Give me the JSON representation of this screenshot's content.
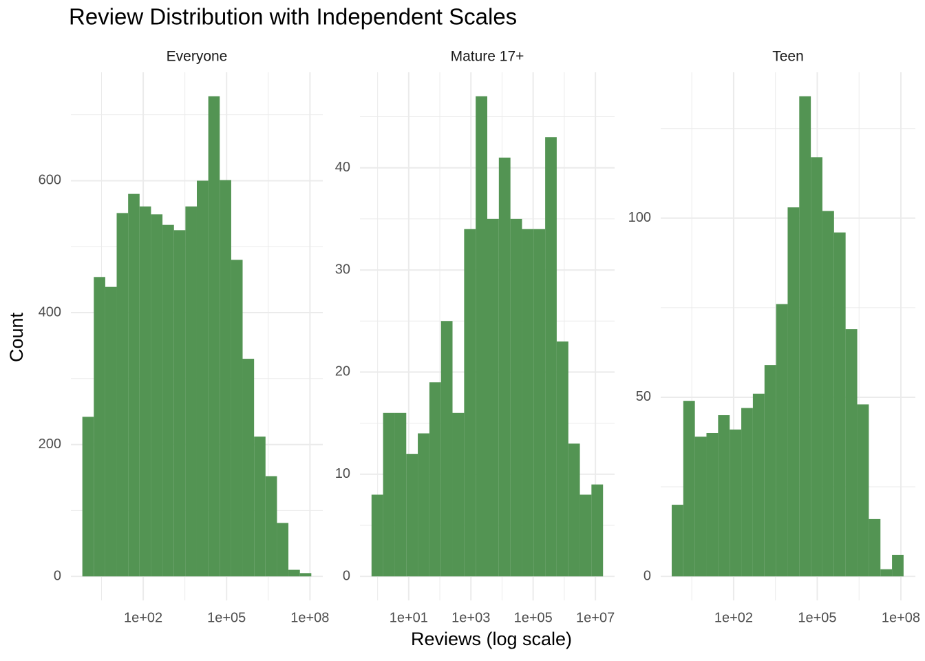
{
  "title": "Review Distribution with Independent Scales",
  "x_label": "Reviews (log scale)",
  "y_label": "Count",
  "chart_data": [
    {
      "type": "histogram",
      "title": "Everyone",
      "color": "#4d914d",
      "log_x": true,
      "grid": true,
      "bins": [
        0.646,
        1.67,
        4.31,
        11.1,
        28.7,
        74.1,
        191,
        494,
        1280,
        3300,
        8510,
        22000,
        56800,
        147000,
        378000,
        977000,
        2520000,
        6520000,
        16800000,
        43500000,
        112000000
      ],
      "values": [
        242,
        454,
        439,
        551,
        580,
        561,
        549,
        533,
        525,
        561,
        600,
        728,
        601,
        480,
        330,
        212,
        152,
        81,
        10,
        5
      ],
      "xlim": [
        0.25,
        290000000
      ],
      "xticks": [
        {
          "value": 100,
          "label": "1e+02"
        },
        {
          "value": 100000,
          "label": "1e+05"
        },
        {
          "value": 100000000,
          "label": "1e+08"
        }
      ],
      "ylim": [
        -36.4,
        764.4
      ],
      "yticks": [
        0,
        200,
        400,
        600
      ]
    },
    {
      "type": "histogram",
      "title": "Mature 17+",
      "color": "#4d914d",
      "log_x": true,
      "grid": true,
      "bins": [
        0.638,
        1.5,
        3.54,
        8.34,
        19.6,
        46.2,
        109,
        256,
        604,
        1420,
        3350,
        7890,
        18600,
        43800,
        103000,
        243000,
        571000,
        1350000,
        3170000,
        7460000,
        17600000
      ],
      "values": [
        8,
        16,
        16,
        12,
        14,
        19,
        25,
        16,
        34,
        47,
        35,
        41,
        35,
        34,
        34,
        43,
        23,
        13,
        8,
        9
      ],
      "xlim": [
        0.271,
        41400000
      ],
      "xticks": [
        {
          "value": 10,
          "label": "1e+01"
        },
        {
          "value": 1000,
          "label": "1e+03"
        },
        {
          "value": 100000,
          "label": "1e+05"
        },
        {
          "value": 10000000,
          "label": "1e+07"
        }
      ],
      "ylim": [
        -2.35,
        49.35
      ],
      "yticks": [
        0,
        10,
        20,
        30,
        40
      ]
    },
    {
      "type": "histogram",
      "title": "Teen",
      "color": "#4d914d",
      "log_x": true,
      "grid": true,
      "bins": [
        0.6,
        1.56,
        4.07,
        10.6,
        27.7,
        72.1,
        188,
        490,
        1280,
        3330,
        8670,
        22600,
        58900,
        153000,
        400000,
        1040000,
        2720000,
        7080000,
        18500000,
        48100000,
        125000000
      ],
      "values": [
        20,
        49,
        39,
        40,
        45,
        41,
        47,
        51,
        59,
        76,
        103,
        134,
        117,
        102,
        96,
        69,
        48,
        16,
        2,
        6
      ],
      "xlim": [
        0.242,
        331000000
      ],
      "xticks": [
        {
          "value": 100,
          "label": "1e+02"
        },
        {
          "value": 100000,
          "label": "1e+05"
        },
        {
          "value": 100000000,
          "label": "1e+08"
        }
      ],
      "ylim": [
        -6.7,
        140.7
      ],
      "yticks": [
        0,
        50,
        100
      ]
    }
  ]
}
